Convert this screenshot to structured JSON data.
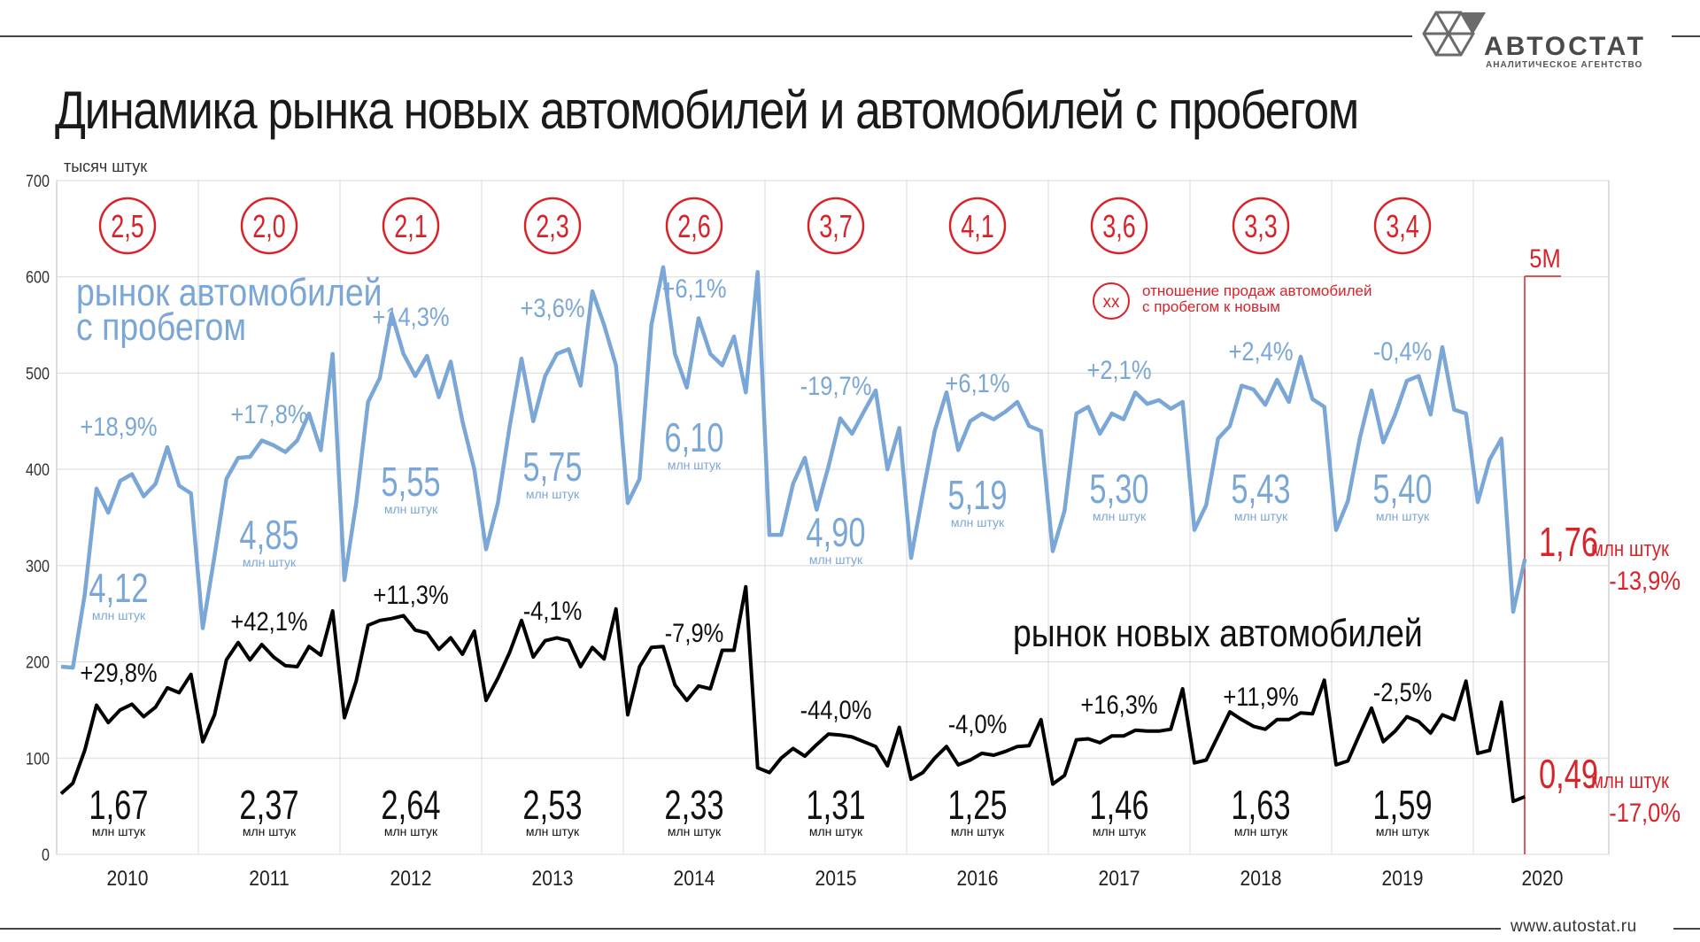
{
  "title": "Динамика рынка новых автомобилей и автомобилей с пробегом",
  "logo": {
    "name": "АВТОСТАТ",
    "subtitle": "АНАЛИТИЧЕСКОЕ АГЕНТСТВО"
  },
  "footer": {
    "site": "www.autostat.ru"
  },
  "colors": {
    "used": "#7ba7d7",
    "new": "#000000",
    "accent": "#d9232a",
    "grid": "#d9d9d9"
  },
  "chart_data": {
    "type": "line",
    "ylabel": "тысяч штук",
    "ylim": [
      0,
      700
    ],
    "yticks": [
      0,
      100,
      200,
      300,
      400,
      500,
      600,
      700
    ],
    "years": [
      "2010",
      "2011",
      "2012",
      "2013",
      "2014",
      "2015",
      "2016",
      "2017",
      "2018",
      "2019",
      "2020"
    ],
    "used_label_line1": "рынок автомобилей",
    "used_label_line2": "с пробегом",
    "new_label": "рынок новых автомобилей",
    "ratio_legend_symbol": "xx",
    "ratio_legend_line1": "отношение продаж автомобилей",
    "ratio_legend_line2": "с пробегом к новым",
    "ratios": [
      "2,5",
      "2,0",
      "2,1",
      "2,3",
      "2,6",
      "3,7",
      "4,1",
      "3,6",
      "3,3",
      "3,4"
    ],
    "series": [
      {
        "key": "used",
        "values": [
          195,
          194,
          270,
          380,
          355,
          388,
          395,
          372,
          385,
          423,
          383,
          375,
          235,
          310,
          390,
          412,
          413,
          430,
          425,
          418,
          430,
          458,
          420,
          520,
          285,
          365,
          470,
          495,
          562,
          520,
          497,
          518,
          475,
          512,
          450,
          400,
          317,
          365,
          445,
          515,
          450,
          497,
          520,
          525,
          487,
          585,
          550,
          508,
          365,
          390,
          550,
          610,
          520,
          485,
          557,
          520,
          508,
          538,
          480,
          605,
          332,
          332,
          385,
          412,
          358,
          403,
          453,
          437,
          460,
          482,
          400,
          443,
          308,
          375,
          440,
          480,
          420,
          450,
          458,
          452,
          460,
          470,
          445,
          440,
          315,
          357,
          458,
          465,
          437,
          458,
          452,
          480,
          468,
          472,
          463,
          470,
          337,
          363,
          432,
          445,
          487,
          483,
          467,
          493,
          470,
          517,
          473,
          465,
          337,
          367,
          432,
          482,
          428,
          457,
          492,
          497,
          457,
          527,
          462,
          458,
          366,
          410,
          432,
          252,
          307
        ]
      },
      {
        "key": "new",
        "values": [
          63,
          74,
          108,
          155,
          137,
          150,
          156,
          143,
          153,
          173,
          168,
          187,
          117,
          145,
          202,
          220,
          202,
          218,
          205,
          196,
          195,
          216,
          207,
          253,
          142,
          180,
          238,
          243,
          245,
          248,
          233,
          230,
          213,
          225,
          208,
          232,
          160,
          183,
          210,
          243,
          205,
          222,
          225,
          222,
          195,
          215,
          203,
          255,
          145,
          195,
          215,
          216,
          176,
          160,
          175,
          172,
          212,
          212,
          278,
          90,
          85,
          100,
          110,
          102,
          114,
          125,
          124,
          122,
          117,
          112,
          92,
          132,
          78,
          85,
          100,
          112,
          93,
          98,
          105,
          103,
          107,
          112,
          113,
          140,
          73,
          82,
          119,
          120,
          116,
          123,
          123,
          129,
          128,
          128,
          130,
          172,
          95,
          98,
          123,
          148,
          140,
          133,
          130,
          140,
          140,
          147,
          146,
          181,
          93,
          97,
          125,
          152,
          117,
          128,
          143,
          138,
          126,
          145,
          140,
          180,
          105,
          108,
          158,
          55,
          60
        ]
      }
    ],
    "used_annotations": [
      {
        "year": "2010",
        "change": "+18,9%",
        "total": "4,12",
        "unit": "млн штук"
      },
      {
        "year": "2011",
        "change": "+17,8%",
        "total": "4,85",
        "unit": "млн штук"
      },
      {
        "year": "2012",
        "change": "+14,3%",
        "total": "5,55",
        "unit": "млн штук"
      },
      {
        "year": "2013",
        "change": "+3,6%",
        "total": "5,75",
        "unit": "млн штук"
      },
      {
        "year": "2014",
        "change": "+6,1%",
        "total": "6,10",
        "unit": "млн штук"
      },
      {
        "year": "2015",
        "change": "-19,7%",
        "total": "4,90",
        "unit": "млн штук"
      },
      {
        "year": "2016",
        "change": "+6,1%",
        "total": "5,19",
        "unit": "млн штук"
      },
      {
        "year": "2017",
        "change": "+2,1%",
        "total": "5,30",
        "unit": "млн штук"
      },
      {
        "year": "2018",
        "change": "+2,4%",
        "total": "5,43",
        "unit": "млн штук"
      },
      {
        "year": "2019",
        "change": "-0,4%",
        "total": "5,40",
        "unit": "млн штук"
      }
    ],
    "new_annotations": [
      {
        "year": "2010",
        "change": "+29,8%",
        "total": "1,67",
        "unit": "млн штук"
      },
      {
        "year": "2011",
        "change": "+42,1%",
        "total": "2,37",
        "unit": "млн штук"
      },
      {
        "year": "2012",
        "change": "+11,3%",
        "total": "2,64",
        "unit": "млн штук"
      },
      {
        "year": "2013",
        "change": "-4,1%",
        "total": "2,53",
        "unit": "млн штук"
      },
      {
        "year": "2014",
        "change": "-7,9%",
        "total": "2,33",
        "unit": "млн штук"
      },
      {
        "year": "2015",
        "change": "-44,0%",
        "total": "1,31",
        "unit": "млн штук"
      },
      {
        "year": "2016",
        "change": "-4,0%",
        "total": "1,25",
        "unit": "млн штук"
      },
      {
        "year": "2017",
        "change": "+16,3%",
        "total": "1,46",
        "unit": "млн штук"
      },
      {
        "year": "2018",
        "change": "+11,9%",
        "total": "1,63",
        "unit": "млн штук"
      },
      {
        "year": "2019",
        "change": "-2,5%",
        "total": "1,59",
        "unit": "млн штук"
      }
    ],
    "ytd_2020": {
      "period": "5М",
      "used_total": "1,76",
      "used_unit": "млн штук",
      "used_change": "-13,9%",
      "new_total": "0,49",
      "new_unit": "млн штук",
      "new_change": "-17,0%"
    }
  }
}
